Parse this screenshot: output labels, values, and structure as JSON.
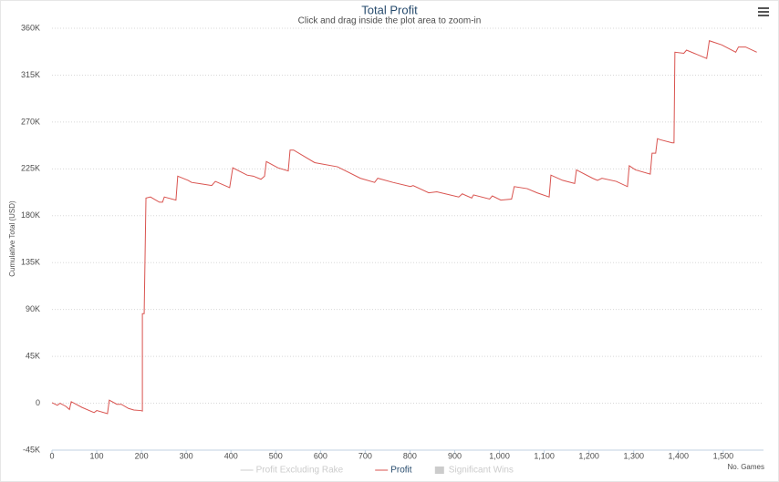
{
  "chart_data": {
    "type": "line",
    "title": "Total Profit",
    "subtitle": "Click and drag inside the plot area to zoom-in",
    "y_label": "Cumulative Total (USD)",
    "x_label": "No. Games",
    "x": [
      0,
      12,
      18,
      31,
      39,
      43,
      67,
      94,
      100,
      124,
      128,
      145,
      155,
      171,
      183,
      198,
      202,
      202,
      206,
      210,
      220,
      240,
      247,
      251,
      277,
      281,
      304,
      312,
      328,
      357,
      365,
      397,
      404,
      436,
      450,
      467,
      475,
      479,
      505,
      528,
      532,
      540,
      587,
      638,
      689,
      721,
      728,
      762,
      801,
      807,
      842,
      860,
      909,
      917,
      938,
      942,
      978,
      984,
      1003,
      1027,
      1033,
      1062,
      1084,
      1111,
      1115,
      1141,
      1168,
      1172,
      1208,
      1219,
      1229,
      1261,
      1286,
      1290,
      1304,
      1337,
      1341,
      1349,
      1353,
      1359,
      1386,
      1390,
      1392,
      1412,
      1418,
      1463,
      1469,
      1497,
      1528,
      1534,
      1550,
      1575
    ],
    "series": [
      {
        "name": "Profit Excluding Rake",
        "color": "#cccccc",
        "type": "line",
        "visible": false
      },
      {
        "name": "Profit",
        "color": "#d9534f",
        "type": "line",
        "visible": true,
        "values": [
          500,
          -2000,
          0,
          -3000,
          -6000,
          1500,
          -4000,
          -9000,
          -7000,
          -10000,
          3000,
          -1000,
          -1000,
          -5000,
          -6500,
          -7000,
          -7500,
          86000,
          86000,
          197000,
          198000,
          193000,
          193000,
          198000,
          195000,
          218000,
          214000,
          212000,
          211000,
          209000,
          213000,
          207000,
          226000,
          219000,
          218000,
          215000,
          218000,
          232000,
          226000,
          223000,
          243000,
          243000,
          231000,
          227000,
          216000,
          212000,
          216000,
          212000,
          208000,
          209000,
          202000,
          203000,
          198000,
          201000,
          197000,
          200000,
          196000,
          199000,
          195000,
          196000,
          208000,
          206000,
          202000,
          198000,
          219000,
          214000,
          211000,
          224000,
          216000,
          214000,
          216000,
          213000,
          208000,
          228000,
          224000,
          220000,
          240000,
          240000,
          254000,
          253000,
          250000,
          250000,
          337000,
          336000,
          339000,
          331000,
          348000,
          344000,
          337000,
          342000,
          342000,
          337000
        ]
      },
      {
        "name": "Significant Wins",
        "color": "#cccccc",
        "type": "column",
        "visible": false
      }
    ],
    "xlim": [
      0,
      1590
    ],
    "ylim": [
      -45000,
      360000
    ],
    "xticks": [
      0,
      100,
      200,
      300,
      400,
      500,
      600,
      700,
      800,
      900,
      {
        "value": 1000,
        "label": "1,000"
      },
      {
        "value": 1100,
        "label": "1,100"
      },
      {
        "value": 1200,
        "label": "1,200"
      },
      {
        "value": 1300,
        "label": "1,300"
      },
      {
        "value": 1400,
        "label": "1,400"
      },
      {
        "value": 1500,
        "label": "1,500"
      }
    ],
    "yticks": [
      {
        "value": -45000,
        "label": "-45K"
      },
      {
        "value": 0,
        "label": "0"
      },
      {
        "value": 45000,
        "label": "45K"
      },
      {
        "value": 90000,
        "label": "90K"
      },
      {
        "value": 135000,
        "label": "135K"
      },
      {
        "value": 180000,
        "label": "180K"
      },
      {
        "value": 225000,
        "label": "225K"
      },
      {
        "value": 270000,
        "label": "270K"
      },
      {
        "value": 315000,
        "label": "315K"
      },
      {
        "value": 360000,
        "label": "360K"
      }
    ],
    "grid": true
  }
}
